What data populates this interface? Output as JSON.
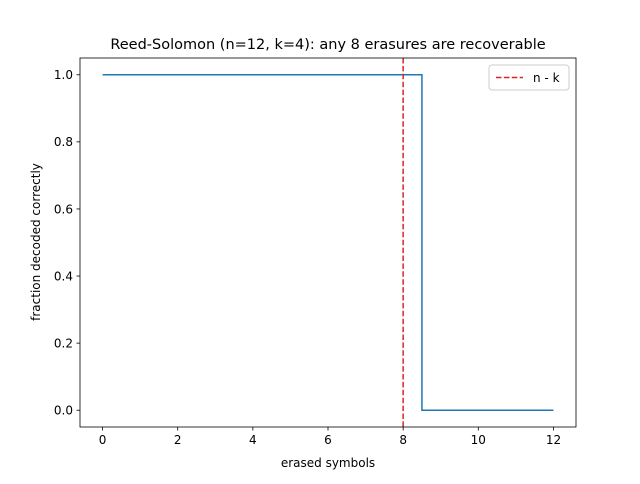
{
  "chart_data": {
    "type": "line",
    "step": "mid",
    "title": "Reed-Solomon (n=12, k=4): any 8 erasures are recoverable",
    "xlabel": "erased symbols",
    "ylabel": "fraction decoded correctly",
    "xlim": [
      -0.6,
      12.6
    ],
    "ylim": [
      -0.05,
      1.05
    ],
    "grid": false,
    "legend_position": "top-right",
    "x_ticks": [
      0,
      2,
      4,
      6,
      8,
      10,
      12
    ],
    "x_tick_labels": [
      "0",
      "2",
      "4",
      "6",
      "8",
      "10",
      "12"
    ],
    "y_ticks": [
      0.0,
      0.2,
      0.4,
      0.6,
      0.8,
      1.0
    ],
    "y_tick_labels": [
      "0.0",
      "0.2",
      "0.4",
      "0.6",
      "0.8",
      "1.0"
    ],
    "series": [
      {
        "x": [
          0,
          1,
          2,
          3,
          4,
          5,
          6,
          7,
          8,
          9,
          10,
          11,
          12
        ],
        "y": [
          1,
          1,
          1,
          1,
          1,
          1,
          1,
          1,
          1,
          0,
          0,
          0,
          0
        ],
        "color": "#1f77b4"
      }
    ],
    "reference_lines": [
      {
        "orientation": "vertical",
        "x": 8,
        "style": "dashed",
        "color": "#d62728",
        "label": "n - k"
      }
    ]
  }
}
